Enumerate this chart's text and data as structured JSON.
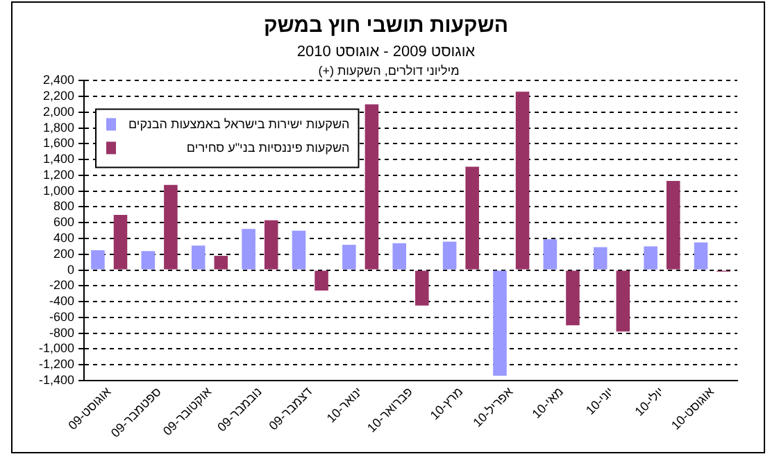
{
  "chart_data": {
    "type": "bar",
    "title": "השקעות תושבי חוץ במשק",
    "subtitle": "אוגוסט 2009 - אוגוסט 2010",
    "annotations": [
      "מיליוני דולרים, השקעות (+)"
    ],
    "categories": [
      "אוגוסט-09",
      "ספטמבר-09",
      "אוקטובר-09",
      "נובמבר-09",
      "דצמבר-09",
      "ינואר-10",
      "פברואר-10",
      "מרץ-10",
      "אפריל-10",
      "מאי-10",
      "יוני-10",
      "יולי-10",
      "אוגוסט-10"
    ],
    "series": [
      {
        "name": "השקעות ישירות בישראל באמצעות הבנקים",
        "color": "#9999ff",
        "values": [
          250,
          240,
          310,
          520,
          500,
          320,
          340,
          360,
          -1340,
          390,
          290,
          300,
          350
        ]
      },
      {
        "name": "השקעות פיננסיות בני\"ע סחירים",
        "color": "#993366",
        "values": [
          700,
          1080,
          180,
          630,
          -260,
          2100,
          -450,
          1310,
          2260,
          -700,
          -780,
          1130,
          -20
        ]
      }
    ],
    "ylim": [
      -1400,
      2400
    ],
    "yticks": [
      {
        "value": -1400,
        "label": "-1,400"
      },
      {
        "value": -1200,
        "label": "-1,200"
      },
      {
        "value": -1000,
        "label": "-1,000"
      },
      -800,
      -600,
      -400,
      -200,
      0,
      200,
      400,
      600,
      800,
      {
        "value": 1000,
        "label": "1,000"
      },
      {
        "value": 1200,
        "label": "1,200"
      },
      {
        "value": 1400,
        "label": "1,400"
      },
      {
        "value": 1600,
        "label": "1,600"
      },
      {
        "value": 1800,
        "label": "1,800"
      },
      {
        "value": 2000,
        "label": "2,000"
      },
      {
        "value": 2200,
        "label": "2,200"
      },
      {
        "value": 2400,
        "label": "2,400"
      }
    ],
    "grid": "y",
    "legend": "top left"
  }
}
